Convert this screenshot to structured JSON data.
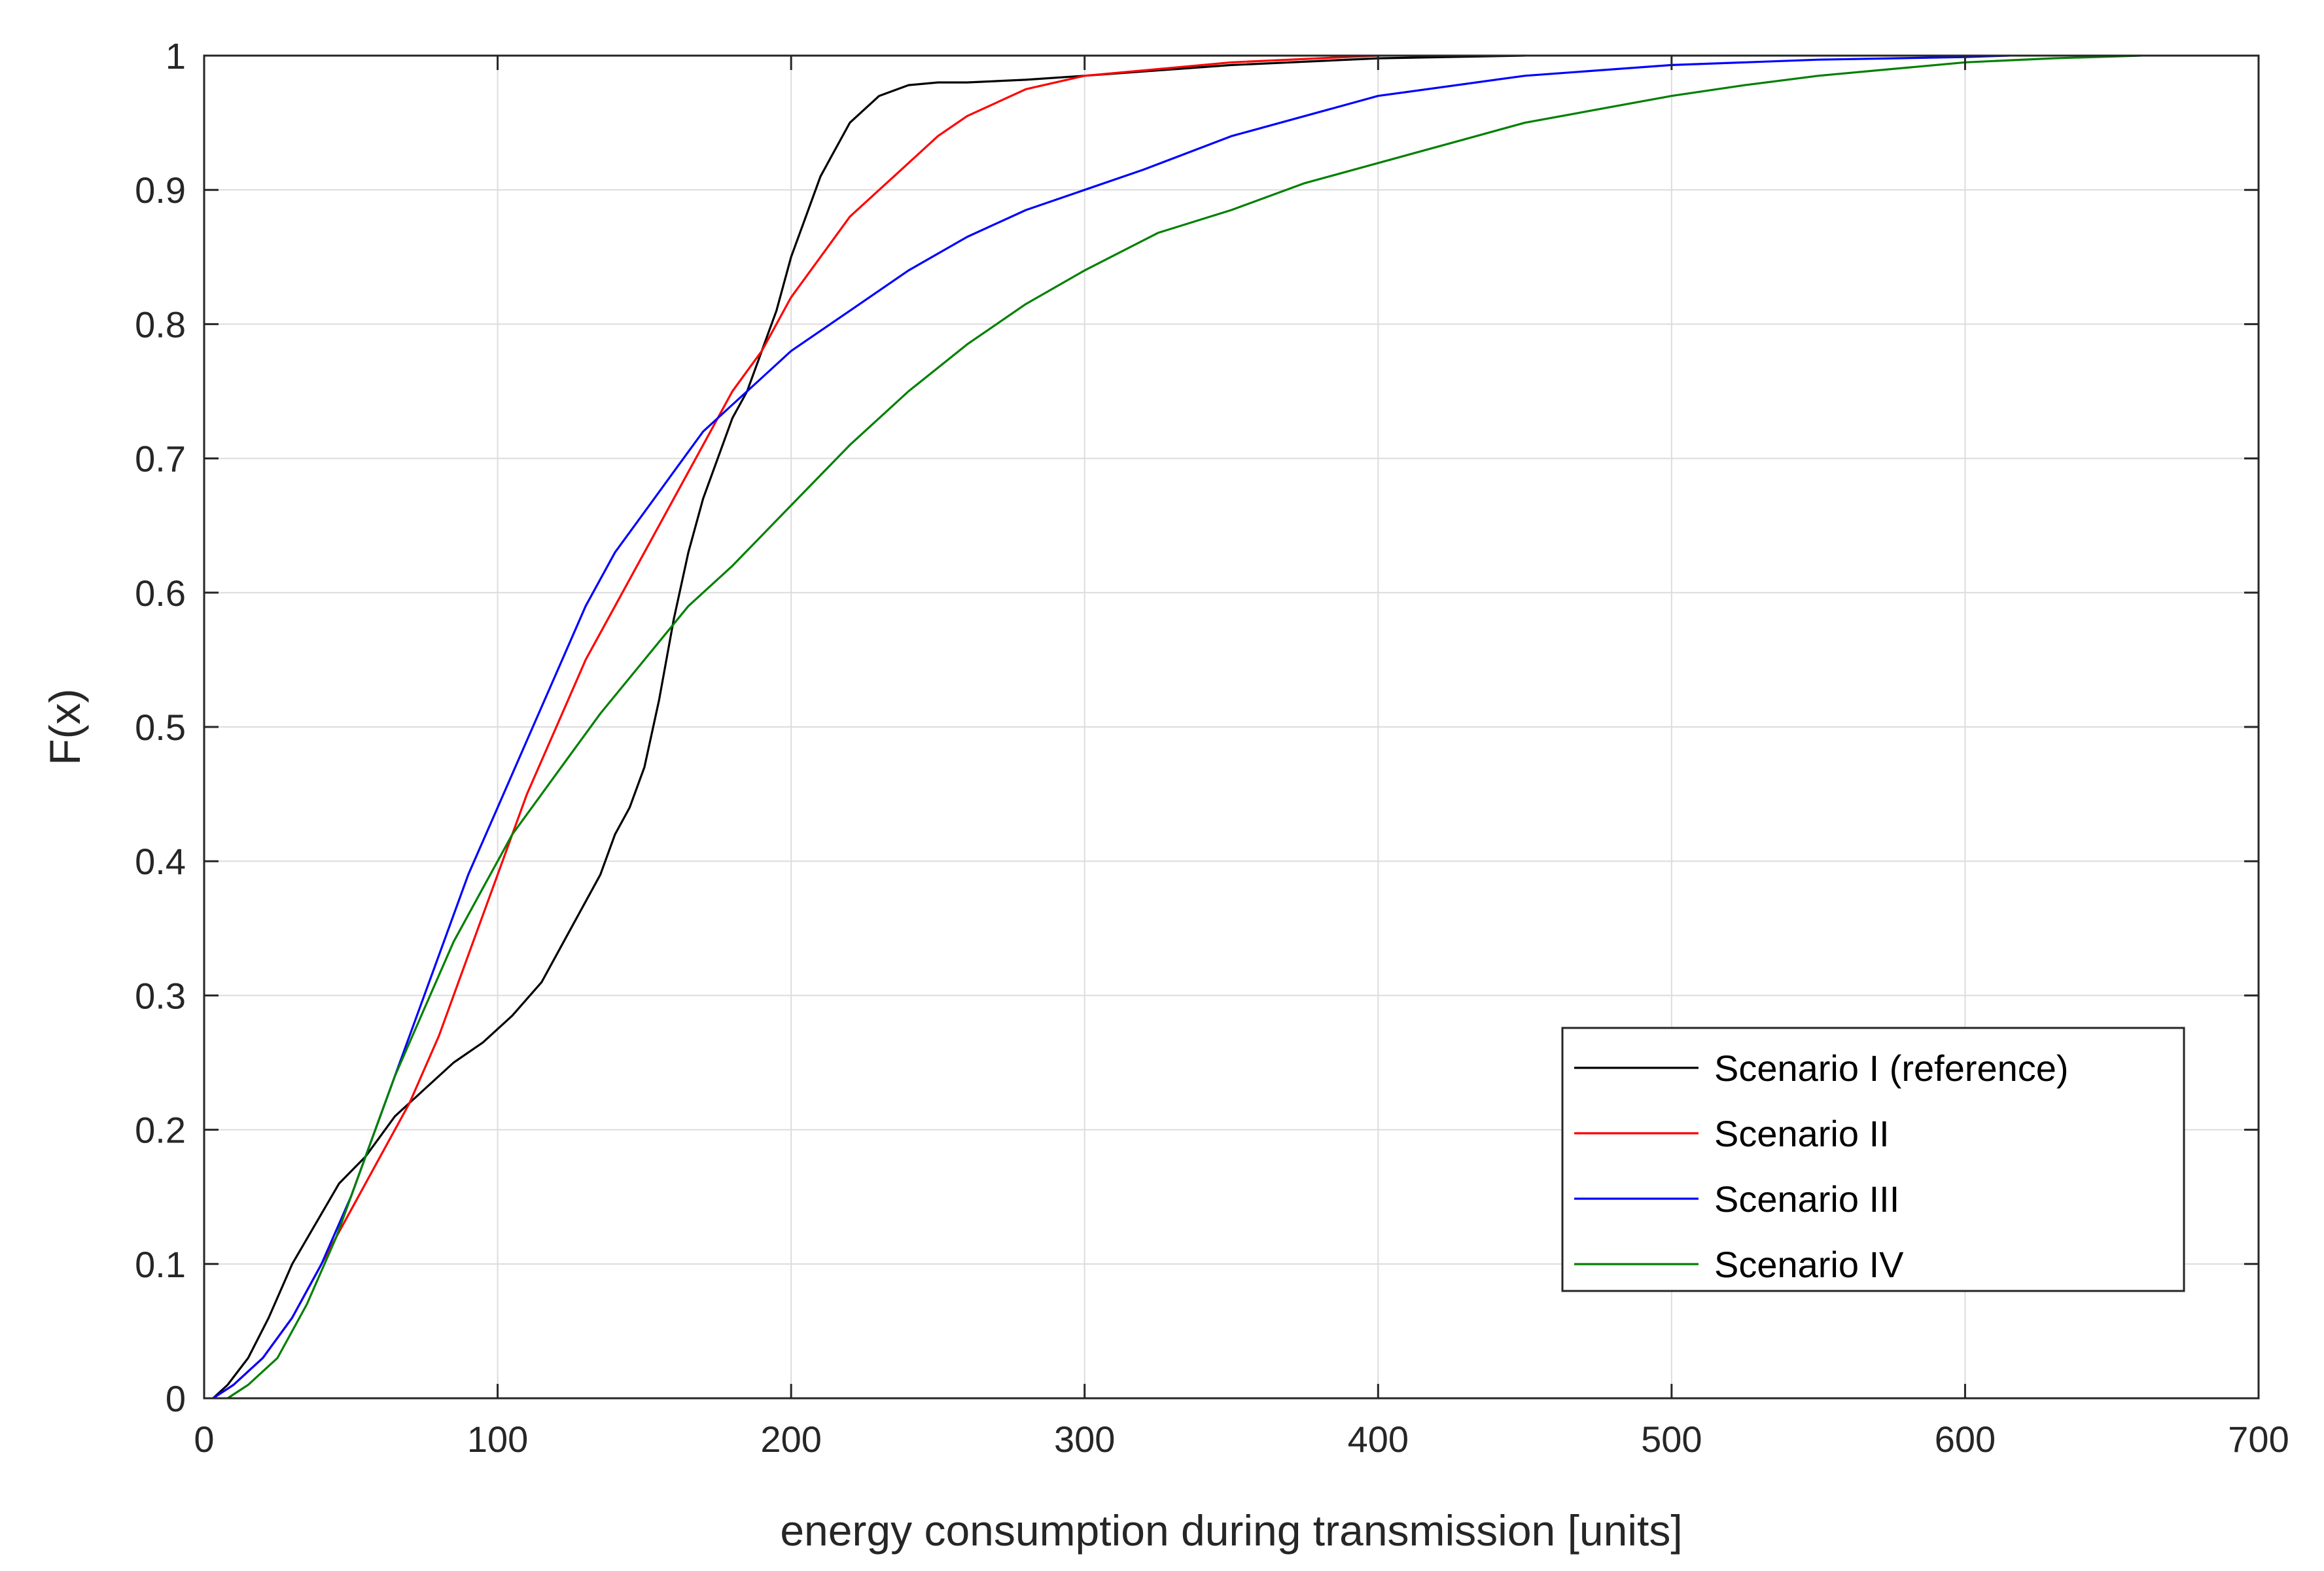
{
  "chart_data": {
    "type": "line",
    "title": "",
    "xlabel": "energy consumption during transmission [units]",
    "ylabel": "F(x)",
    "xlim": [
      0,
      700
    ],
    "ylim": [
      0,
      1
    ],
    "grid": true,
    "legend_location": "lower-right",
    "x_ticks": [
      0,
      100,
      200,
      300,
      400,
      500,
      600,
      700
    ],
    "x_tick_labels": [
      "0",
      "100",
      "200",
      "300",
      "400",
      "500",
      "600",
      "700"
    ],
    "y_ticks": [
      0,
      0.1,
      0.2,
      0.3,
      0.4,
      0.5,
      0.6,
      0.7,
      0.8,
      0.9,
      1
    ],
    "y_tick_labels": [
      "0",
      "0.1",
      "0.2",
      "0.3",
      "0.4",
      "0.5",
      "0.6",
      "0.7",
      "0.8",
      "0.9",
      "1"
    ],
    "series": [
      {
        "name": "Scenario I (reference)",
        "color": "#000000",
        "x": [
          3,
          8,
          15,
          22,
          30,
          38,
          46,
          55,
          65,
          75,
          85,
          95,
          105,
          115,
          125,
          135,
          140,
          145,
          150,
          155,
          160,
          165,
          170,
          175,
          180,
          185,
          190,
          195,
          200,
          205,
          210,
          215,
          220,
          225,
          230,
          240,
          250,
          260,
          280,
          300,
          350,
          400,
          450
        ],
        "values": [
          0,
          0.01,
          0.03,
          0.06,
          0.1,
          0.13,
          0.16,
          0.18,
          0.21,
          0.23,
          0.25,
          0.265,
          0.285,
          0.31,
          0.35,
          0.39,
          0.42,
          0.44,
          0.47,
          0.52,
          0.58,
          0.63,
          0.67,
          0.7,
          0.73,
          0.75,
          0.78,
          0.81,
          0.85,
          0.88,
          0.91,
          0.93,
          0.95,
          0.96,
          0.97,
          0.978,
          0.98,
          0.98,
          0.982,
          0.985,
          0.993,
          0.998,
          1
        ]
      },
      {
        "name": "Scenario II",
        "color": "#ff0000",
        "x": [
          3,
          10,
          20,
          30,
          40,
          50,
          60,
          70,
          80,
          90,
          100,
          110,
          120,
          130,
          140,
          150,
          160,
          170,
          180,
          190,
          200,
          210,
          220,
          230,
          240,
          250,
          260,
          280,
          300,
          350,
          400
        ],
        "values": [
          0,
          0.01,
          0.03,
          0.06,
          0.1,
          0.14,
          0.18,
          0.22,
          0.27,
          0.33,
          0.39,
          0.45,
          0.5,
          0.55,
          0.59,
          0.63,
          0.67,
          0.71,
          0.75,
          0.78,
          0.82,
          0.85,
          0.88,
          0.9,
          0.92,
          0.94,
          0.955,
          0.975,
          0.985,
          0.995,
          1
        ]
      },
      {
        "name": "Scenario III",
        "color": "#0000ff",
        "x": [
          3,
          10,
          20,
          30,
          40,
          50,
          60,
          70,
          80,
          90,
          100,
          110,
          120,
          130,
          140,
          150,
          160,
          170,
          180,
          190,
          200,
          220,
          240,
          260,
          280,
          300,
          320,
          350,
          400,
          450,
          500,
          550,
          600,
          615
        ],
        "values": [
          0,
          0.01,
          0.03,
          0.06,
          0.1,
          0.15,
          0.21,
          0.27,
          0.33,
          0.39,
          0.44,
          0.49,
          0.54,
          0.59,
          0.63,
          0.66,
          0.69,
          0.72,
          0.74,
          0.76,
          0.78,
          0.81,
          0.84,
          0.865,
          0.885,
          0.9,
          0.915,
          0.94,
          0.97,
          0.985,
          0.993,
          0.997,
          0.999,
          1
        ]
      },
      {
        "name": "Scenario IV",
        "color": "#008000",
        "x": [
          8,
          15,
          25,
          35,
          45,
          55,
          65,
          75,
          85,
          95,
          105,
          115,
          125,
          135,
          150,
          165,
          180,
          200,
          220,
          240,
          260,
          280,
          300,
          325,
          350,
          375,
          400,
          425,
          450,
          475,
          500,
          525,
          550,
          575,
          600,
          630,
          660
        ],
        "values": [
          0,
          0.01,
          0.03,
          0.07,
          0.12,
          0.18,
          0.24,
          0.29,
          0.34,
          0.38,
          0.42,
          0.45,
          0.48,
          0.51,
          0.55,
          0.59,
          0.62,
          0.665,
          0.71,
          0.75,
          0.785,
          0.815,
          0.84,
          0.868,
          0.885,
          0.905,
          0.92,
          0.935,
          0.95,
          0.96,
          0.97,
          0.978,
          0.985,
          0.99,
          0.995,
          0.998,
          1
        ]
      }
    ]
  }
}
